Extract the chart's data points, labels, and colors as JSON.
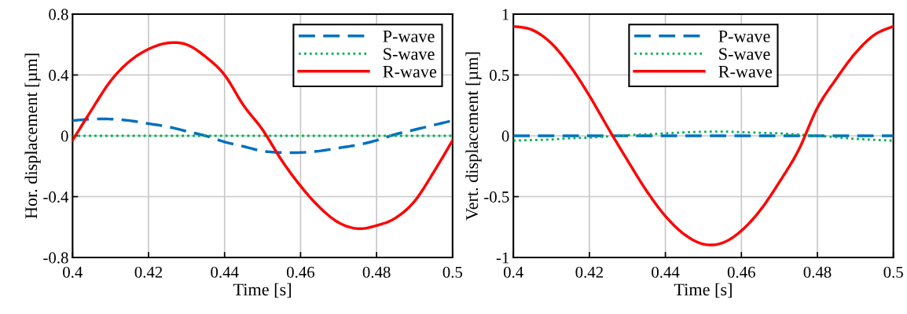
{
  "chart_data": [
    {
      "type": "line",
      "xlabel": "Time [s]",
      "ylabel": "Hor. displacement [µm]",
      "x": [
        0.4,
        0.405,
        0.41,
        0.415,
        0.42,
        0.425,
        0.43,
        0.435,
        0.44,
        0.445,
        0.45,
        0.455,
        0.46,
        0.465,
        0.47,
        0.475,
        0.48,
        0.485,
        0.49,
        0.495,
        0.5
      ],
      "series": [
        {
          "name": "P-wave",
          "color": "#0070c0",
          "line_style": "dashed",
          "values": [
            0.1,
            0.11,
            0.11,
            0.1,
            0.08,
            0.06,
            0.03,
            0.0,
            -0.04,
            -0.07,
            -0.1,
            -0.11,
            -0.11,
            -0.1,
            -0.08,
            -0.06,
            -0.03,
            0.01,
            0.04,
            0.07,
            0.1
          ]
        },
        {
          "name": "S-wave",
          "color": "#00b050",
          "line_style": "dotted",
          "values": [
            0,
            0,
            0,
            0,
            0,
            0,
            0,
            0,
            0,
            0,
            0,
            0,
            0,
            0,
            0,
            0,
            0,
            0,
            0,
            0,
            0
          ]
        },
        {
          "name": "R-wave",
          "color": "#ff0000",
          "line_style": "solid",
          "values": [
            -0.03,
            0.17,
            0.36,
            0.49,
            0.57,
            0.61,
            0.6,
            0.52,
            0.4,
            0.2,
            0.04,
            -0.16,
            -0.33,
            -0.47,
            -0.57,
            -0.61,
            -0.59,
            -0.54,
            -0.43,
            -0.24,
            -0.03
          ]
        }
      ],
      "xlim": [
        0.4,
        0.5
      ],
      "xticks": [
        0.4,
        0.42,
        0.44,
        0.46,
        0.48,
        0.5
      ],
      "ylim": [
        -0.8,
        0.8
      ],
      "yticks": [
        -0.8,
        -0.4,
        0,
        0.4,
        0.8
      ],
      "grid": true,
      "legend": "top right",
      "marker": "none"
    },
    {
      "type": "line",
      "xlabel": "Time [s]",
      "ylabel": "Vert. displacement [µm]",
      "x": [
        0.4,
        0.405,
        0.41,
        0.415,
        0.42,
        0.425,
        0.43,
        0.435,
        0.44,
        0.445,
        0.45,
        0.455,
        0.46,
        0.465,
        0.47,
        0.475,
        0.48,
        0.485,
        0.49,
        0.495,
        0.5
      ],
      "series": [
        {
          "name": "P-wave",
          "color": "#0070c0",
          "line_style": "dashed",
          "values": [
            0,
            0,
            0,
            0,
            0,
            0,
            0,
            0,
            0,
            0,
            0,
            0,
            0,
            0,
            0,
            0,
            0,
            0,
            0,
            0,
            0
          ]
        },
        {
          "name": "S-wave",
          "color": "#00b050",
          "line_style": "dotted",
          "values": [
            -0.04,
            -0.035,
            -0.03,
            -0.02,
            -0.015,
            -0.005,
            0.005,
            0.012,
            0.02,
            0.028,
            0.033,
            0.035,
            0.03,
            0.025,
            0.02,
            0.01,
            0.0,
            -0.012,
            -0.025,
            -0.033,
            -0.04
          ]
        },
        {
          "name": "R-wave",
          "color": "#ff0000",
          "line_style": "solid",
          "values": [
            0.9,
            0.87,
            0.76,
            0.57,
            0.33,
            0.06,
            -0.2,
            -0.45,
            -0.66,
            -0.81,
            -0.89,
            -0.88,
            -0.78,
            -0.61,
            -0.38,
            -0.12,
            0.23,
            0.47,
            0.68,
            0.83,
            0.9
          ]
        }
      ],
      "xlim": [
        0.4,
        0.5
      ],
      "xticks": [
        0.4,
        0.42,
        0.44,
        0.46,
        0.48,
        0.5
      ],
      "ylim": [
        -1,
        1
      ],
      "yticks": [
        -1,
        -0.5,
        0,
        0.5,
        1
      ],
      "grid": true,
      "legend": "top",
      "marker": "none"
    }
  ]
}
